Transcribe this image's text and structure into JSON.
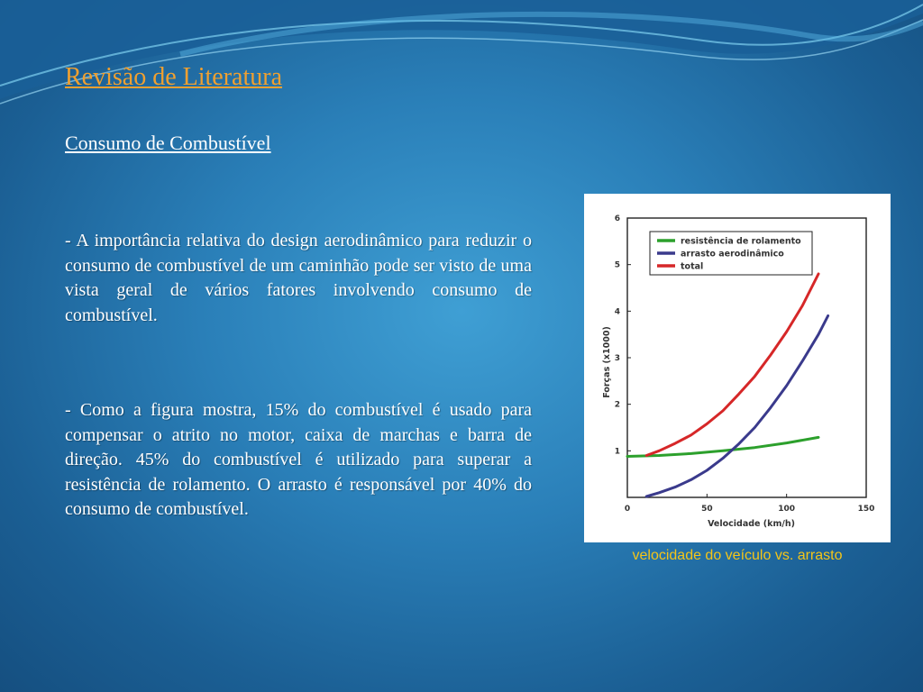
{
  "slide": {
    "title": "Revisão de Literatura ",
    "subtitle": "Consumo de Combustível",
    "paragraphs": [
      "- A importância relativa do design aerodinâmico para reduzir o consumo de combustível de um caminhão pode ser visto de uma vista geral de vários fatores involvendo consumo de combustível.",
      "- Como a figura mostra, 15% do combustível é usado para compensar o atrito no motor, caixa de marchas e barra de direção. 45% do combustível é utilizado para superar a resistência de rolamento. O arrasto é responsável por 40% do consumo de combustível."
    ],
    "caption": "velocidade do veículo vs. arrasto"
  },
  "colors": {
    "title": "#f0a030",
    "caption": "#f5c518",
    "series_green": "#2ca02c",
    "series_blue": "#3a3a8c",
    "series_red": "#d62728"
  },
  "chart_data": {
    "type": "line",
    "xlabel": "Velocidade (km/h)",
    "ylabel": "Forças (x1000)",
    "xlim": [
      0,
      150
    ],
    "ylim": [
      0,
      6
    ],
    "xticks": [
      0,
      50,
      100,
      150
    ],
    "yticks": [
      1,
      2,
      3,
      4,
      5,
      6
    ],
    "x_tick_labels": [
      "0",
      "50",
      "100",
      "150"
    ],
    "y_tick_labels": [
      "1",
      "2",
      "3",
      "4",
      "5",
      "6"
    ],
    "legend_position": "top-left",
    "grid": false,
    "series": [
      {
        "name": "resistência de rolamento",
        "color": "#2ca02c",
        "x": [
          0,
          20,
          40,
          60,
          80,
          100,
          120
        ],
        "y": [
          0.88,
          0.9,
          0.94,
          1.0,
          1.07,
          1.17,
          1.29
        ]
      },
      {
        "name": "arrasto aerodinâmico",
        "color": "#3a3a8c",
        "x": [
          12,
          20,
          30,
          40,
          50,
          60,
          70,
          80,
          90,
          100,
          110,
          120,
          126
        ],
        "y": [
          0.02,
          0.1,
          0.22,
          0.38,
          0.58,
          0.84,
          1.15,
          1.5,
          1.93,
          2.4,
          2.93,
          3.5,
          3.9
        ]
      },
      {
        "name": "total",
        "color": "#d62728",
        "x": [
          12,
          20,
          30,
          40,
          50,
          60,
          70,
          80,
          90,
          100,
          110,
          120
        ],
        "y": [
          0.9,
          1.0,
          1.16,
          1.34,
          1.58,
          1.86,
          2.22,
          2.6,
          3.06,
          3.56,
          4.12,
          4.8
        ]
      }
    ]
  }
}
